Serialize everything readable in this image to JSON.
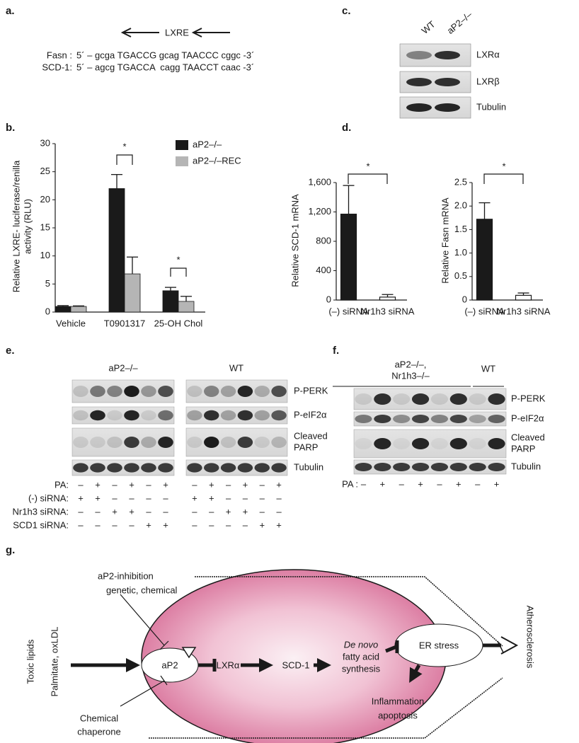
{
  "panel_a": {
    "label": "a.",
    "motif": "LXRE",
    "sequences": [
      {
        "gene": "Fasn :",
        "sequence": "5´ – gcga TGACCG gcag TAACCC cggc -3´"
      },
      {
        "gene": "SCD-1:",
        "sequence": "5´ – agcg TGACCA  cagg TAACCT caac -3´"
      }
    ]
  },
  "panel_c": {
    "label": "c.",
    "lanes": [
      "WT",
      "aP2–/–"
    ],
    "bands": [
      "LXRα",
      "LXRβ",
      "Tubulin"
    ]
  },
  "chart_data": [
    {
      "type": "bar",
      "panel": "b.",
      "y_label": [
        "Relative LXRE- luciferase/renilla",
        "activity (RLU)"
      ],
      "categories": [
        "Vehicle",
        "T0901317",
        "25-OH Chol"
      ],
      "series": [
        {
          "name": "aP2–/–",
          "color": "#1a1a1a",
          "values": [
            1,
            22,
            3.8
          ],
          "errors": [
            0.15,
            2.5,
            0.6
          ]
        },
        {
          "name": "aP2–/–REC",
          "color": "#b5b5b5",
          "values": [
            1,
            6.8,
            1.9
          ],
          "errors": [
            0.1,
            3,
            0.9
          ]
        }
      ],
      "ylim": [
        0,
        30
      ],
      "yticks": [
        0,
        5,
        10,
        15,
        20,
        25,
        30
      ],
      "annotations": [
        "*",
        "*"
      ],
      "legend": "top-right"
    },
    {
      "type": "bar",
      "panel": "d.",
      "y_label": [
        "Relative SCD-1 mRNA"
      ],
      "categories": [
        "(–) siRNA",
        "Nr1h3 siRNA"
      ],
      "values": [
        1170,
        40
      ],
      "errors": [
        390,
        35
      ],
      "colors": [
        "#1a1a1a",
        "#ffffff"
      ],
      "ylim": [
        0,
        1600
      ],
      "yticks": [
        0,
        400,
        800,
        {
          "value": 1200,
          "label": "1,200"
        },
        {
          "value": 1600,
          "label": "1,600"
        }
      ],
      "annotations": [
        "*"
      ]
    },
    {
      "type": "bar",
      "y_label": [
        "Relative Fasn mRNA"
      ],
      "categories": [
        "(–) siRNA",
        "Nr1h3 siRNA"
      ],
      "values": [
        1.72,
        0.1
      ],
      "errors": [
        0.35,
        0.05
      ],
      "colors": [
        "#1a1a1a",
        "#ffffff"
      ],
      "ylim": [
        0,
        2.5
      ],
      "yticks": [
        0,
        0.5,
        {
          "value": 1,
          "label": "1.0"
        },
        1.5,
        {
          "value": 2,
          "label": "2.0"
        },
        2.5
      ],
      "annotations": [
        "*"
      ]
    }
  ],
  "panel_e": {
    "label": "e.",
    "groups": [
      "aP2–/–",
      "WT"
    ],
    "bands": [
      [
        "P-PERK"
      ],
      [
        "P-eIF2α"
      ],
      [
        "Cleaved",
        "PARP"
      ],
      [
        "Tubulin"
      ]
    ],
    "conditions": [
      {
        "label": "PA:",
        "signs": [
          "–",
          "+",
          "–",
          "+",
          "–",
          "+",
          "–",
          "+",
          "–",
          "+",
          "–",
          "+"
        ]
      },
      {
        "label": "(-) siRNA:",
        "signs": [
          "+",
          "+",
          "–",
          "–",
          "–",
          "–",
          "+",
          "+",
          "–",
          "–",
          "–",
          "–"
        ]
      },
      {
        "label": "Nr1h3 siRNA:",
        "signs": [
          "–",
          "–",
          "+",
          "+",
          "–",
          "–",
          "–",
          "–",
          "+",
          "+",
          "–",
          "–"
        ]
      },
      {
        "label": "SCD1 siRNA:",
        "signs": [
          "–",
          "–",
          "–",
          "–",
          "+",
          "+",
          "–",
          "–",
          "–",
          "–",
          "+",
          "+"
        ]
      }
    ]
  },
  "panel_f": {
    "label": "f.",
    "groups": [
      [
        "aP2–/–,",
        "Nr1h3–/–"
      ],
      [
        "WT"
      ]
    ],
    "bands": [
      [
        "P-PERK"
      ],
      [
        "P-eIF2α"
      ],
      [
        "Cleaved",
        "PARP"
      ],
      [
        "Tubulin"
      ]
    ],
    "conditions": [
      {
        "label": "PA :",
        "signs": [
          "–",
          "+",
          "–",
          "+",
          "–",
          "+",
          "–",
          "+"
        ]
      }
    ]
  },
  "panel_g": {
    "label": "g.",
    "inhibition": "aP2-inhibition",
    "inhibition_detail": "genetic, chemical",
    "input": "Toxic lipids",
    "input_detail": "Palmitate, oxLDL",
    "nodes": [
      "aP2",
      "LXRα",
      "SCD-1"
    ],
    "synthesis": [
      "De novo",
      "fatty acid",
      "synthesis"
    ],
    "stress": "ER stress",
    "outcome": [
      "Inflammation",
      "apoptosis"
    ],
    "chaperone": [
      "Chemical",
      "chaperone"
    ],
    "disease": "Atherosclerosis"
  }
}
